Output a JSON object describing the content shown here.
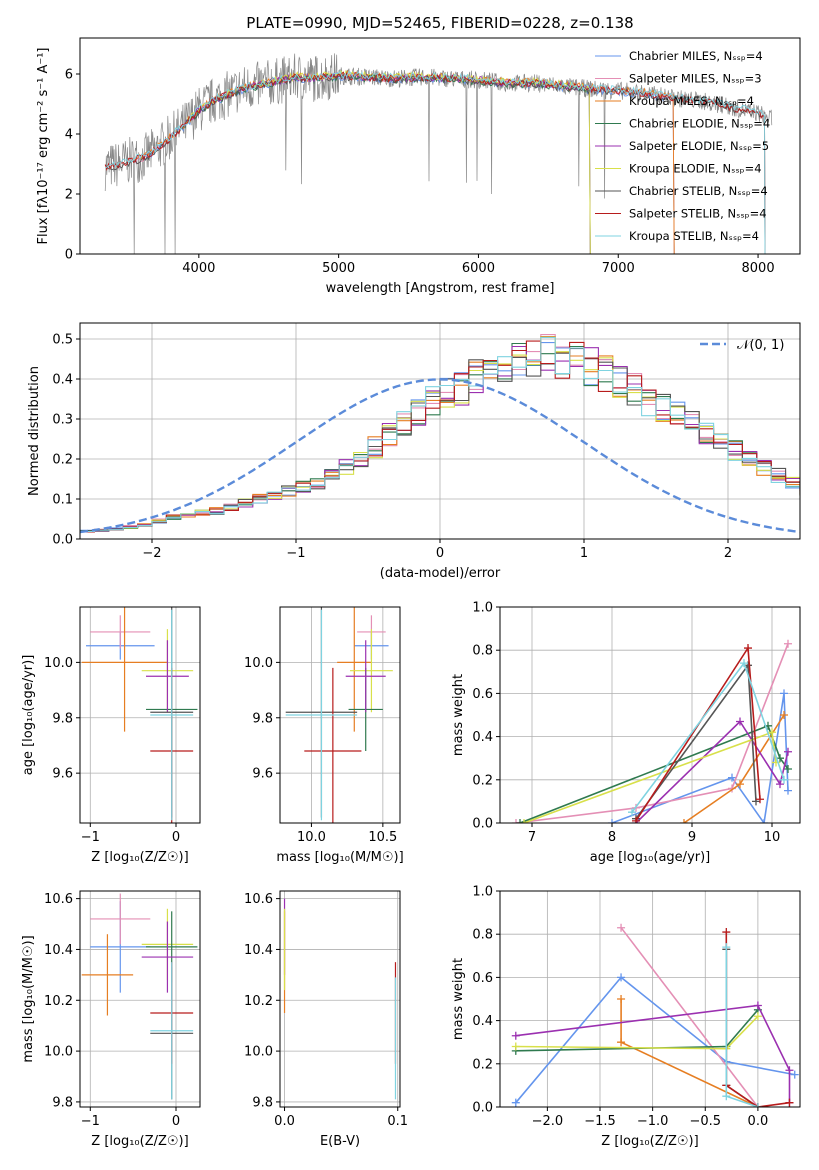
{
  "figure": {
    "title": "PLATE=0990, MJD=52465, FIBERID=0228, z=0.138"
  },
  "chart_data": [
    {
      "id": "spectrum",
      "type": "line",
      "xlabel": "wavelength [Angstrom, rest frame]",
      "ylabel": "Flux [fλ10⁻¹⁷ erg cm⁻² s⁻¹ A⁻¹]",
      "xlim": [
        3150,
        8300
      ],
      "ylim": [
        0,
        7.2
      ],
      "xticks": [
        4000,
        5000,
        6000,
        7000,
        8000
      ],
      "yticks": [
        0,
        2,
        4,
        6
      ],
      "grid": false,
      "legend": "top-right",
      "data_profile": {
        "x": [
          3330,
          3400,
          3500,
          3600,
          3700,
          3800,
          3900,
          4000,
          4100,
          4200,
          4300,
          4400,
          4500,
          4600,
          4700,
          4800,
          4900,
          5000,
          5200,
          5400,
          5600,
          5800,
          6000,
          6200,
          6400,
          6600,
          6800,
          7000,
          7200,
          7400,
          7600,
          7800,
          8000,
          8100
        ],
        "y": [
          2.9,
          2.95,
          3.1,
          3.2,
          3.5,
          3.9,
          4.3,
          4.8,
          5.1,
          5.3,
          5.5,
          5.6,
          5.7,
          5.8,
          5.9,
          5.85,
          5.9,
          5.95,
          5.9,
          5.85,
          5.9,
          5.85,
          5.8,
          5.7,
          5.7,
          5.6,
          5.5,
          5.45,
          5.35,
          5.2,
          5.1,
          4.9,
          4.7,
          4.5
        ]
      },
      "series": [
        {
          "name": "Chabrier MILES, N$_{SSP}$=4",
          "color": "#6495ed",
          "range": [
            3540,
            7400
          ]
        },
        {
          "name": "Salpeter MILES, N$_{SSP}$=3",
          "color": "#e48fb5",
          "range": [
            3540,
            7400
          ]
        },
        {
          "name": "Kroupa MILES, N$_{SSP}$=4",
          "color": "#e67e22",
          "range": [
            3540,
            7400
          ]
        },
        {
          "name": "Chabrier ELODIE, N$_{SSP}$=4",
          "color": "#2f7a4f",
          "range": [
            3900,
            6800
          ]
        },
        {
          "name": "Salpeter ELODIE, N$_{SSP}$=5",
          "color": "#9b30b0",
          "range": [
            3900,
            6800
          ]
        },
        {
          "name": "Kroupa ELODIE, N$_{SSP}$=4",
          "color": "#d8e04a",
          "range": [
            3900,
            6800
          ]
        },
        {
          "name": "Chabrier STELIB, N$_{SSP}$=4",
          "color": "#555555",
          "range": [
            3330,
            8050
          ]
        },
        {
          "name": "Salpeter STELIB, N$_{SSP}$=4",
          "color": "#b71c1c",
          "range": [
            3330,
            8050
          ]
        },
        {
          "name": "Kroupa STELIB, N$_{SSP}$=4",
          "color": "#7fd3e0",
          "range": [
            3330,
            8050
          ]
        }
      ]
    },
    {
      "id": "residuals",
      "type": "histogram",
      "xlabel": "(data-model)/error",
      "ylabel": "Normed distribution",
      "xlim": [
        -2.5,
        2.5
      ],
      "ylim": [
        0,
        0.54
      ],
      "xticks": [
        -2,
        -1,
        0,
        1,
        2
      ],
      "yticks": [
        0.0,
        0.1,
        0.2,
        0.3,
        0.4,
        0.5
      ],
      "grid": true,
      "legend": "top-right",
      "legend_label": "𝒩(0, 1)",
      "bin_width": 0.1,
      "bin_start": -2.5,
      "base_values": [
        0.02,
        0.022,
        0.025,
        0.03,
        0.035,
        0.045,
        0.055,
        0.06,
        0.065,
        0.07,
        0.08,
        0.09,
        0.1,
        0.11,
        0.12,
        0.13,
        0.14,
        0.16,
        0.18,
        0.2,
        0.23,
        0.26,
        0.29,
        0.32,
        0.34,
        0.36,
        0.38,
        0.4,
        0.42,
        0.43,
        0.44,
        0.45,
        0.46,
        0.45,
        0.44,
        0.43,
        0.41,
        0.39,
        0.37,
        0.35,
        0.33,
        0.31,
        0.29,
        0.27,
        0.25,
        0.22,
        0.2,
        0.18,
        0.16,
        0.14,
        0.12,
        0.11,
        0.1,
        0.09,
        0.08,
        0.07,
        0.06,
        0.055,
        0.05,
        0.045,
        0.04,
        0.035,
        0.03,
        0.03,
        0.028,
        0.025,
        0.025,
        0.022,
        0.02,
        0.02
      ]
    },
    {
      "id": "age-vs-Z",
      "type": "errorbar",
      "xlabel": "Z [log₁₀(Z/Z☉)]",
      "ylabel": "age  [log₁₀(age/yr)]",
      "xlim": [
        -1.12,
        0.28
      ],
      "ylim": [
        9.42,
        10.2
      ],
      "xticks": [
        -1,
        0
      ],
      "yticks": [
        9.6,
        9.8,
        10.0
      ],
      "grid": true,
      "points": [
        {
          "x": -0.65,
          "xerr": 0.4,
          "y": 10.06,
          "yerr": 0.05,
          "color": "#6495ed"
        },
        {
          "x": -0.65,
          "xerr": 0.35,
          "y": 10.11,
          "yerr": 0.06,
          "color": "#e48fb5"
        },
        {
          "x": -0.6,
          "xerr": 0.5,
          "y": 10.0,
          "yerr": 0.25,
          "color": "#e67e22"
        },
        {
          "x": -0.1,
          "xerr": 0.3,
          "y": 9.97,
          "yerr": 0.15,
          "color": "#d8e04a"
        },
        {
          "x": -0.05,
          "xerr": 0.3,
          "y": 9.83,
          "yerr": 0.15,
          "color": "#2f7a4f"
        },
        {
          "x": -0.1,
          "xerr": 0.25,
          "y": 9.95,
          "yerr": 0.13,
          "color": "#9b30b0"
        },
        {
          "x": -0.05,
          "xerr": 0.25,
          "y": 9.82,
          "yerr": 0.38,
          "color": "#555555"
        },
        {
          "x": -0.05,
          "xerr": 0.25,
          "y": 9.68,
          "yerr": 0.3,
          "color": "#b71c1c"
        },
        {
          "x": -0.05,
          "xerr": 0.25,
          "y": 9.81,
          "yerr": 0.38,
          "color": "#7fd3e0"
        }
      ]
    },
    {
      "id": "age-vs-mass",
      "type": "errorbar",
      "xlabel": "mass [log₁₀(M/M☉)]",
      "ylabel": "",
      "xlim": [
        9.78,
        10.62
      ],
      "ylim": [
        9.42,
        10.2
      ],
      "xticks": [
        10.0,
        10.5
      ],
      "yticks": [
        9.6,
        9.8,
        10.0
      ],
      "grid": true,
      "points": [
        {
          "x": 10.42,
          "xerr": 0.12,
          "y": 10.06,
          "yerr": 0.05,
          "color": "#6495ed"
        },
        {
          "x": 10.42,
          "xerr": 0.1,
          "y": 10.11,
          "yerr": 0.06,
          "color": "#e48fb5"
        },
        {
          "x": 10.3,
          "xerr": 0.12,
          "y": 10.0,
          "yerr": 0.25,
          "color": "#e67e22"
        },
        {
          "x": 10.42,
          "xerr": 0.15,
          "y": 9.97,
          "yerr": 0.15,
          "color": "#d8e04a"
        },
        {
          "x": 10.38,
          "xerr": 0.12,
          "y": 9.83,
          "yerr": 0.15,
          "color": "#2f7a4f"
        },
        {
          "x": 10.38,
          "xerr": 0.14,
          "y": 9.95,
          "yerr": 0.13,
          "color": "#9b30b0"
        },
        {
          "x": 10.07,
          "xerr": 0.25,
          "y": 9.82,
          "yerr": 0.38,
          "color": "#555555"
        },
        {
          "x": 10.15,
          "xerr": 0.2,
          "y": 9.68,
          "yerr": 0.3,
          "color": "#b71c1c"
        },
        {
          "x": 10.07,
          "xerr": 0.25,
          "y": 9.81,
          "yerr": 0.38,
          "color": "#7fd3e0"
        }
      ]
    },
    {
      "id": "weight-vs-age",
      "type": "line",
      "xlabel": "age  [log₁₀(age/yr)]",
      "ylabel": "mass weight",
      "xlim": [
        6.6,
        10.35
      ],
      "ylim": [
        0,
        1.0
      ],
      "xticks": [
        7,
        8,
        9,
        10
      ],
      "yticks": [
        0.0,
        0.2,
        0.4,
        0.6,
        0.8,
        1.0
      ],
      "grid": true,
      "series": [
        {
          "color": "#6495ed",
          "x": [
            8.0,
            9.5,
            9.9,
            10.15,
            10.2
          ],
          "y": [
            0.0,
            0.21,
            0.0,
            0.6,
            0.15
          ]
        },
        {
          "color": "#e48fb5",
          "x": [
            6.8,
            8.3,
            9.5,
            10.2
          ],
          "y": [
            0.0,
            0.07,
            0.16,
            0.83
          ]
        },
        {
          "color": "#e67e22",
          "x": [
            8.9,
            9.6,
            10.15
          ],
          "y": [
            0.0,
            0.18,
            0.5
          ]
        },
        {
          "color": "#2f7a4f",
          "x": [
            6.85,
            9.95,
            10.1,
            10.2
          ],
          "y": [
            0.0,
            0.45,
            0.3,
            0.25
          ]
        },
        {
          "color": "#9b30b0",
          "x": [
            8.3,
            9.6,
            10.1,
            10.2
          ],
          "y": [
            0.0,
            0.47,
            0.18,
            0.33
          ]
        },
        {
          "color": "#d8e04a",
          "x": [
            6.9,
            10.0,
            10.05
          ],
          "y": [
            0.0,
            0.42,
            0.28
          ]
        },
        {
          "color": "#555555",
          "x": [
            8.3,
            9.7,
            9.8
          ],
          "y": [
            0.02,
            0.73,
            0.1
          ]
        },
        {
          "color": "#b71c1c",
          "x": [
            8.3,
            9.7,
            9.85
          ],
          "y": [
            0.01,
            0.81,
            0.11
          ]
        },
        {
          "color": "#7fd3e0",
          "x": [
            8.25,
            9.65,
            10.15
          ],
          "y": [
            0.05,
            0.74,
            0.2
          ]
        }
      ]
    },
    {
      "id": "mass-vs-Z",
      "type": "errorbar",
      "xlabel": "Z [log₁₀(Z/Z☉)]",
      "ylabel": "mass [log₁₀(M/M☉)]",
      "xlim": [
        -1.12,
        0.28
      ],
      "ylim": [
        9.78,
        10.63
      ],
      "xticks": [
        -1,
        0
      ],
      "yticks": [
        9.8,
        10.0,
        10.2,
        10.4,
        10.6
      ],
      "grid": true,
      "points": [
        {
          "x": -0.65,
          "xerr": 0.35,
          "y": 10.41,
          "yerr": 0.18,
          "color": "#6495ed"
        },
        {
          "x": -0.65,
          "xerr": 0.35,
          "y": 10.52,
          "yerr": 0.1,
          "color": "#e48fb5"
        },
        {
          "x": -0.8,
          "xerr": 0.3,
          "y": 10.3,
          "yerr": 0.16,
          "color": "#e67e22"
        },
        {
          "x": -0.1,
          "xerr": 0.3,
          "y": 10.42,
          "yerr": 0.14,
          "color": "#d8e04a"
        },
        {
          "x": -0.05,
          "xerr": 0.3,
          "y": 10.41,
          "yerr": 0.14,
          "color": "#2f7a4f"
        },
        {
          "x": -0.1,
          "xerr": 0.3,
          "y": 10.37,
          "yerr": 0.14,
          "color": "#9b30b0"
        },
        {
          "x": -0.05,
          "xerr": 0.25,
          "y": 10.07,
          "yerr": 0.26,
          "color": "#555555"
        },
        {
          "x": -0.05,
          "xerr": 0.25,
          "y": 10.15,
          "yerr": 0.2,
          "color": "#b71c1c"
        },
        {
          "x": -0.05,
          "xerr": 0.25,
          "y": 10.08,
          "yerr": 0.27,
          "color": "#7fd3e0"
        }
      ]
    },
    {
      "id": "mass-vs-EBV",
      "type": "errorbar",
      "xlabel": "E(B-V)",
      "ylabel": "",
      "xlim": [
        -0.004,
        0.102
      ],
      "ylim": [
        9.78,
        10.63
      ],
      "xticks": [
        0.0,
        0.1
      ],
      "yticks": [
        9.8,
        10.0,
        10.2,
        10.4,
        10.6
      ],
      "grid": true,
      "points": [
        {
          "x": 0.0,
          "xerr": 0.0,
          "y": 10.45,
          "yerr": 0.15,
          "color": "#9b30b0"
        },
        {
          "x": 0.0,
          "xerr": 0.0,
          "y": 10.35,
          "yerr": 0.2,
          "color": "#e67e22"
        },
        {
          "x": 0.0,
          "xerr": 0.0,
          "y": 10.4,
          "yerr": 0.16,
          "color": "#d8e04a"
        },
        {
          "x": 0.098,
          "xerr": 0.0,
          "y": 10.15,
          "yerr": 0.2,
          "color": "#b71c1c"
        },
        {
          "x": 0.098,
          "xerr": 0.0,
          "y": 10.05,
          "yerr": 0.24,
          "color": "#7fd3e0"
        }
      ]
    },
    {
      "id": "weight-vs-Z",
      "type": "line",
      "xlabel": "Z [log₁₀(Z/Z☉)]",
      "ylabel": "mass weight",
      "xlim": [
        -2.45,
        0.4
      ],
      "ylim": [
        0,
        1.0
      ],
      "xticks": [
        -2.0,
        -1.5,
        -1.0,
        -0.5,
        0.0
      ],
      "yticks": [
        0.0,
        0.2,
        0.4,
        0.6,
        0.8,
        1.0
      ],
      "grid": true,
      "series": [
        {
          "color": "#6495ed",
          "x": [
            -2.3,
            -1.3,
            -0.3,
            0.35
          ],
          "y": [
            0.02,
            0.6,
            0.21,
            0.15
          ]
        },
        {
          "color": "#e48fb5",
          "x": [
            -1.3,
            0.0
          ],
          "y": [
            0.83,
            0.0
          ]
        },
        {
          "color": "#e67e22",
          "x": [
            -1.3,
            -1.3,
            0.0
          ],
          "y": [
            0.5,
            0.3,
            0.0
          ]
        },
        {
          "color": "#2f7a4f",
          "x": [
            -2.3,
            -0.3,
            0.0
          ],
          "y": [
            0.26,
            0.28,
            0.45
          ]
        },
        {
          "color": "#9b30b0",
          "x": [
            -2.3,
            0.0,
            0.3,
            0.3
          ],
          "y": [
            0.33,
            0.47,
            0.17,
            0.02
          ]
        },
        {
          "color": "#d8e04a",
          "x": [
            -2.3,
            -0.3,
            0.0
          ],
          "y": [
            0.28,
            0.27,
            0.42
          ]
        },
        {
          "color": "#555555",
          "x": [
            -0.3,
            -0.3,
            0.0
          ],
          "y": [
            0.73,
            0.1,
            0.0
          ]
        },
        {
          "color": "#b71c1c",
          "x": [
            -0.3,
            -0.3,
            0.0,
            0.3
          ],
          "y": [
            0.81,
            0.1,
            0.0,
            0.02
          ]
        },
        {
          "color": "#7fd3e0",
          "x": [
            -0.3,
            -0.3,
            0.0
          ],
          "y": [
            0.74,
            0.05,
            0.0
          ]
        }
      ]
    }
  ]
}
